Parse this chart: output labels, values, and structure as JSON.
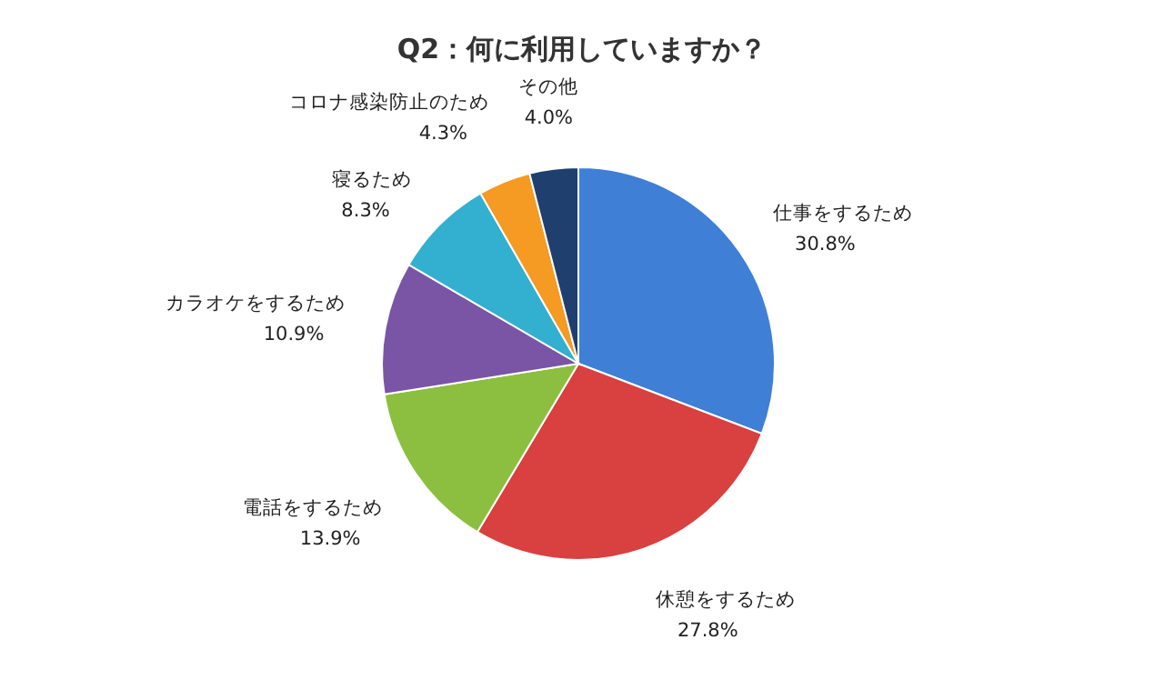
{
  "chart_data": {
    "type": "pie",
    "title": "Q2：何に利用していますか？",
    "categories": [
      "仕事をするため",
      "休憩をするため",
      "電話をするため",
      "カラオケをするため",
      "寝るため",
      "コロナ感染防止のため",
      "その他"
    ],
    "values": [
      30.8,
      27.8,
      13.9,
      10.9,
      8.3,
      4.3,
      4.0
    ],
    "colors": [
      "#3f7fd6",
      "#d94040",
      "#8cbf3f",
      "#7a55a6",
      "#33b0d0",
      "#f59a22",
      "#1f3f6f"
    ],
    "value_labels": [
      "30.8%",
      "27.8%",
      "13.9%",
      "10.9%",
      "8.3%",
      "4.3%",
      "4.0%"
    ]
  }
}
